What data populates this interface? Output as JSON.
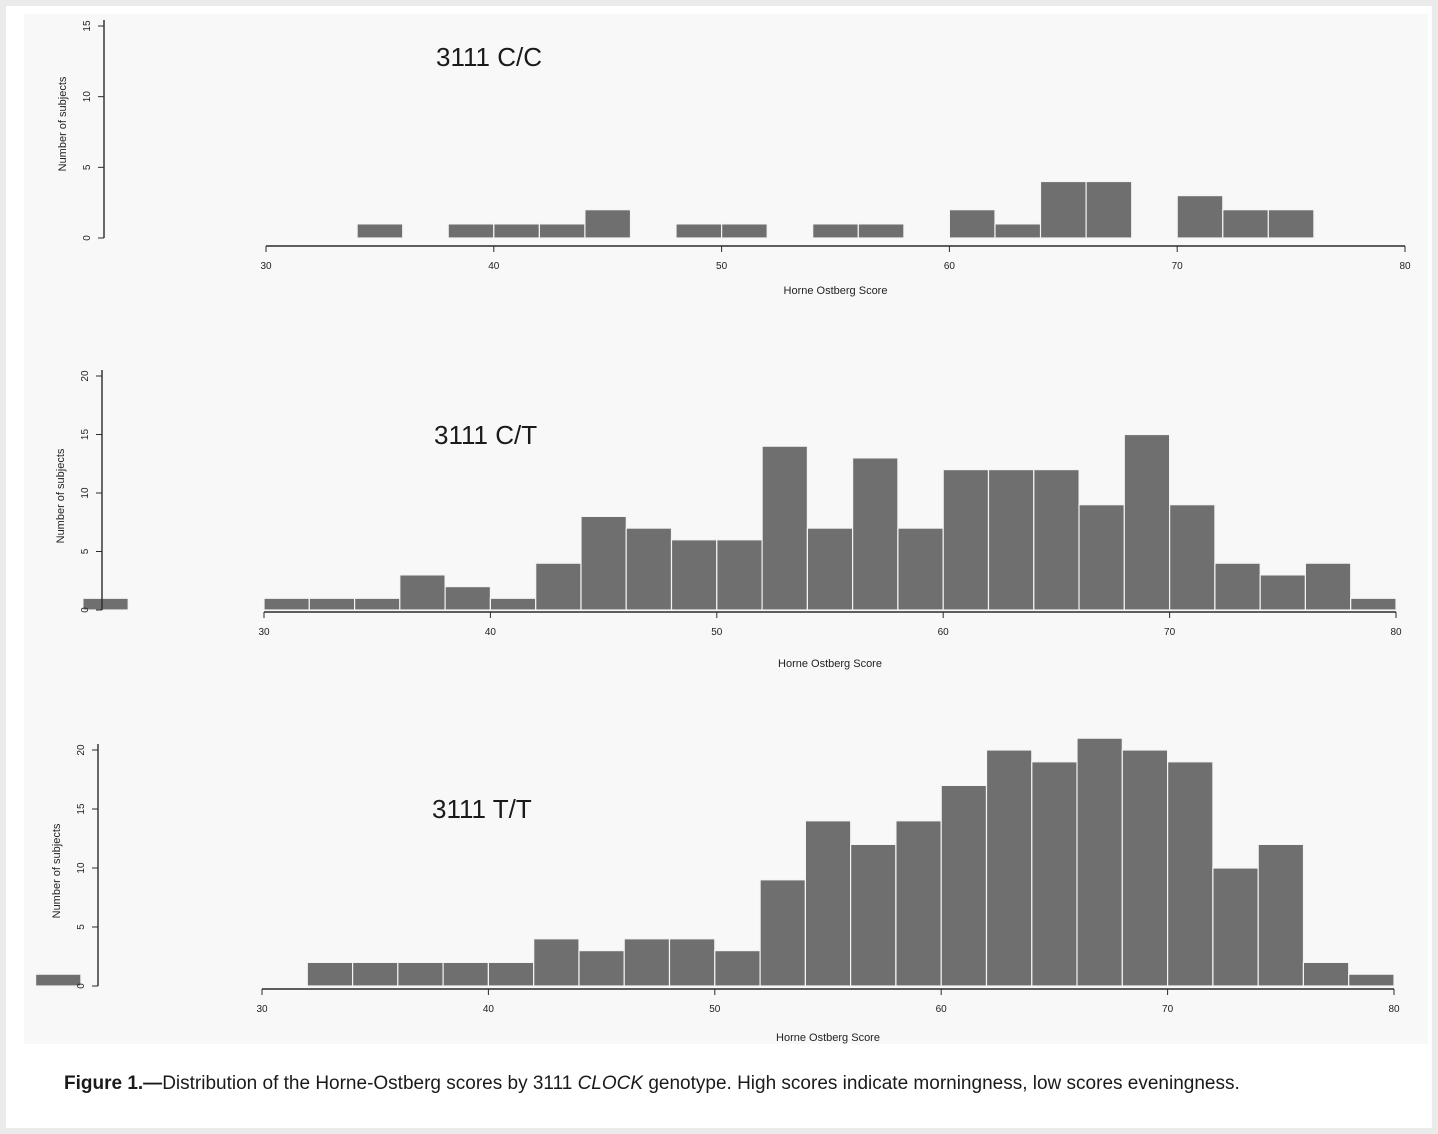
{
  "chart_data": [
    {
      "type": "bar",
      "title": "3111 C/C",
      "xlabel": "Horne Ostberg Score",
      "ylabel": "Number of subjects",
      "xlim": [
        30,
        80
      ],
      "ylim": [
        0,
        15
      ],
      "xticks": [
        30,
        40,
        50,
        60,
        70,
        80
      ],
      "yticks": [
        0,
        5,
        10,
        15
      ],
      "bin_width": 2,
      "bins": [
        {
          "start": 34,
          "value": 1
        },
        {
          "start": 38,
          "value": 1
        },
        {
          "start": 40,
          "value": 1
        },
        {
          "start": 42,
          "value": 1
        },
        {
          "start": 44,
          "value": 2
        },
        {
          "start": 48,
          "value": 1
        },
        {
          "start": 50,
          "value": 1
        },
        {
          "start": 54,
          "value": 1
        },
        {
          "start": 56,
          "value": 1
        },
        {
          "start": 60,
          "value": 2
        },
        {
          "start": 62,
          "value": 1
        },
        {
          "start": 64,
          "value": 4
        },
        {
          "start": 66,
          "value": 4
        },
        {
          "start": 70,
          "value": 3
        },
        {
          "start": 72,
          "value": 2
        },
        {
          "start": 74,
          "value": 2
        }
      ]
    },
    {
      "type": "bar",
      "title": "3111 C/T",
      "xlabel": "Horne Ostberg Score",
      "ylabel": "Number of subjects",
      "xlim": [
        30,
        80
      ],
      "ylim": [
        0,
        20
      ],
      "xticks": [
        30,
        40,
        50,
        60,
        70,
        80
      ],
      "yticks": [
        0,
        5,
        10,
        15,
        20
      ],
      "bin_width": 2,
      "bins": [
        {
          "start": 22,
          "value": 1
        },
        {
          "start": 30,
          "value": 1
        },
        {
          "start": 32,
          "value": 1
        },
        {
          "start": 34,
          "value": 1
        },
        {
          "start": 36,
          "value": 3
        },
        {
          "start": 38,
          "value": 2
        },
        {
          "start": 40,
          "value": 1
        },
        {
          "start": 42,
          "value": 4
        },
        {
          "start": 44,
          "value": 8
        },
        {
          "start": 46,
          "value": 7
        },
        {
          "start": 48,
          "value": 6
        },
        {
          "start": 50,
          "value": 6
        },
        {
          "start": 52,
          "value": 14
        },
        {
          "start": 54,
          "value": 7
        },
        {
          "start": 56,
          "value": 13
        },
        {
          "start": 58,
          "value": 7
        },
        {
          "start": 60,
          "value": 12
        },
        {
          "start": 62,
          "value": 12
        },
        {
          "start": 64,
          "value": 12
        },
        {
          "start": 66,
          "value": 9
        },
        {
          "start": 68,
          "value": 15
        },
        {
          "start": 70,
          "value": 9
        },
        {
          "start": 72,
          "value": 4
        },
        {
          "start": 74,
          "value": 3
        },
        {
          "start": 76,
          "value": 4
        },
        {
          "start": 78,
          "value": 1
        }
      ]
    },
    {
      "type": "bar",
      "title": "3111 T/T",
      "xlabel": "Horne Ostberg Score",
      "ylabel": "Number of subjects",
      "xlim": [
        30,
        80
      ],
      "ylim": [
        0,
        20
      ],
      "xticks": [
        30,
        40,
        50,
        60,
        70,
        80
      ],
      "yticks": [
        0,
        5,
        10,
        15,
        20
      ],
      "bin_width": 2,
      "bins": [
        {
          "start": 20,
          "value": 1
        },
        {
          "start": 32,
          "value": 2
        },
        {
          "start": 34,
          "value": 2
        },
        {
          "start": 36,
          "value": 2
        },
        {
          "start": 38,
          "value": 2
        },
        {
          "start": 40,
          "value": 2
        },
        {
          "start": 42,
          "value": 4
        },
        {
          "start": 44,
          "value": 3
        },
        {
          "start": 46,
          "value": 4
        },
        {
          "start": 48,
          "value": 4
        },
        {
          "start": 50,
          "value": 3
        },
        {
          "start": 52,
          "value": 9
        },
        {
          "start": 54,
          "value": 14
        },
        {
          "start": 56,
          "value": 12
        },
        {
          "start": 58,
          "value": 14
        },
        {
          "start": 60,
          "value": 17
        },
        {
          "start": 62,
          "value": 20
        },
        {
          "start": 64,
          "value": 19
        },
        {
          "start": 66,
          "value": 21
        },
        {
          "start": 68,
          "value": 20
        },
        {
          "start": 70,
          "value": 19
        },
        {
          "start": 72,
          "value": 10
        },
        {
          "start": 74,
          "value": 12
        },
        {
          "start": 76,
          "value": 2
        },
        {
          "start": 78,
          "value": 1
        }
      ]
    }
  ],
  "caption": {
    "label": "Figure 1.—",
    "text_before": "Distribution of the Horne-Ostberg scores by 3111 ",
    "gene": "CLOCK",
    "text_after": " genotype.  High scores indicate morningness, low scores eveningness."
  },
  "colors": {
    "bar_fill": "#6f6f6f",
    "bar_stroke": "#f4f4f4",
    "axis": "#2a2a2a"
  }
}
